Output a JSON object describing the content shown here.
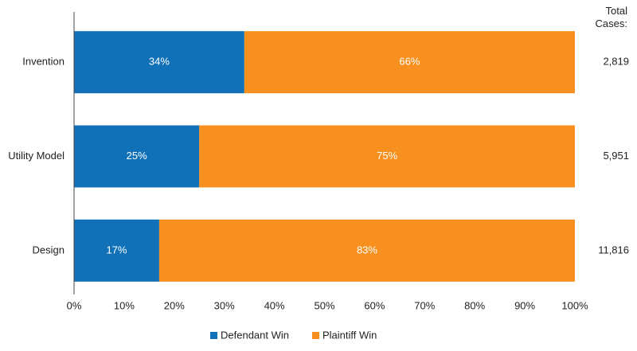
{
  "chart_data": {
    "type": "stacked-barh",
    "categories": [
      "Invention",
      "Utility Model",
      "Design"
    ],
    "series": [
      {
        "name": "Defendant Win",
        "color": "#1071b9",
        "values": [
          34,
          25,
          17
        ],
        "value_labels": [
          "34%",
          "25%",
          "17%"
        ]
      },
      {
        "name": "Plaintiff Win",
        "color": "#f7901e",
        "values": [
          66,
          75,
          83
        ],
        "value_labels": [
          "66%",
          "75%",
          "83%"
        ]
      }
    ],
    "xlim": [
      0,
      100
    ],
    "xticks": [
      {
        "value": 0,
        "label": "0%"
      },
      {
        "value": 10,
        "label": "10%"
      },
      {
        "value": 20,
        "label": "20%"
      },
      {
        "value": 30,
        "label": "30%"
      },
      {
        "value": 40,
        "label": "40%"
      },
      {
        "value": 50,
        "label": "50%"
      },
      {
        "value": 60,
        "label": "60%"
      },
      {
        "value": 70,
        "label": "70%"
      },
      {
        "value": 80,
        "label": "80%"
      },
      {
        "value": 90,
        "label": "90%"
      },
      {
        "value": 100,
        "label": "100%"
      }
    ],
    "grid": false,
    "legend": "bottom",
    "totals": {
      "title": "Total Cases:",
      "values": [
        2819,
        5951,
        11816
      ],
      "value_labels": [
        "2,819",
        "5,951",
        "11,816"
      ]
    }
  }
}
